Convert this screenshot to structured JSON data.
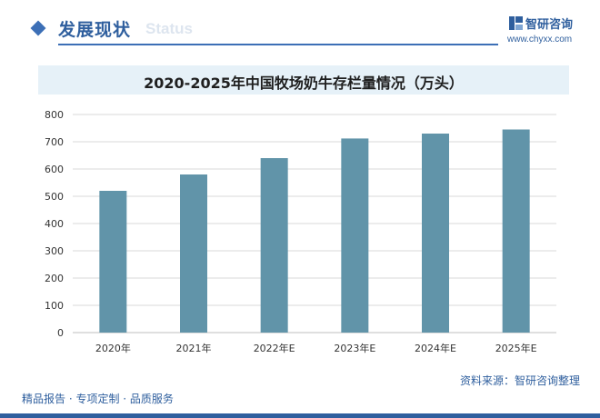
{
  "header": {
    "section_title": "发展现状",
    "section_subtitle_ghost": "Status"
  },
  "brand": {
    "name": "智研咨询",
    "url": "www.chyxx.com"
  },
  "footer": {
    "tagline": "精品报告 · 专项定制 · 品质服务",
    "source": "资料来源：智研咨询整理"
  },
  "colors": {
    "bar": "#6194a9",
    "accent": "#2f5f9e",
    "title_band": "#e6f1f8",
    "grid": "#d9d9d9"
  },
  "chart_data": {
    "type": "bar",
    "title": "2020-2025年中国牧场奶牛存栏量情况（万头）",
    "categories": [
      "2020年",
      "2021年",
      "2022年E",
      "2023年E",
      "2024年E",
      "2025年E"
    ],
    "values": [
      520,
      580,
      640,
      712,
      730,
      745
    ],
    "ylim": [
      0,
      800
    ],
    "yticks": [
      0,
      100,
      200,
      300,
      400,
      500,
      600,
      700,
      800
    ],
    "grid": true,
    "legend": "none"
  }
}
